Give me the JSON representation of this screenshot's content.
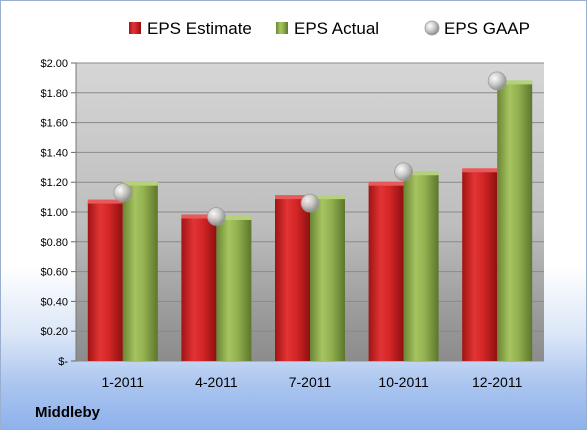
{
  "chart_data": {
    "type": "bar",
    "categories": [
      "1-2011",
      "4-2011",
      "7-2011",
      "10-2011",
      "12-2011"
    ],
    "series": [
      {
        "name": "EPS Estimate",
        "type": "bar",
        "color": "#cc1f1f",
        "values": [
          1.07,
          0.97,
          1.1,
          1.19,
          1.28
        ]
      },
      {
        "name": "EPS Actual",
        "type": "bar",
        "color": "#8aa84a",
        "values": [
          1.19,
          0.96,
          1.1,
          1.26,
          1.87
        ]
      },
      {
        "name": "EPS GAAP",
        "type": "scatter",
        "color": "#c8c8c8",
        "values": [
          1.13,
          0.97,
          1.06,
          1.27,
          1.88
        ]
      }
    ],
    "y_ticks": [
      "$-",
      "$0.20",
      "$0.40",
      "$0.60",
      "$0.80",
      "$1.00",
      "$1.20",
      "$1.40",
      "$1.60",
      "$1.80",
      "$2.00"
    ],
    "ylim": [
      0,
      2.0
    ],
    "grid": true,
    "legend_position": "top",
    "company": "Middleby"
  }
}
